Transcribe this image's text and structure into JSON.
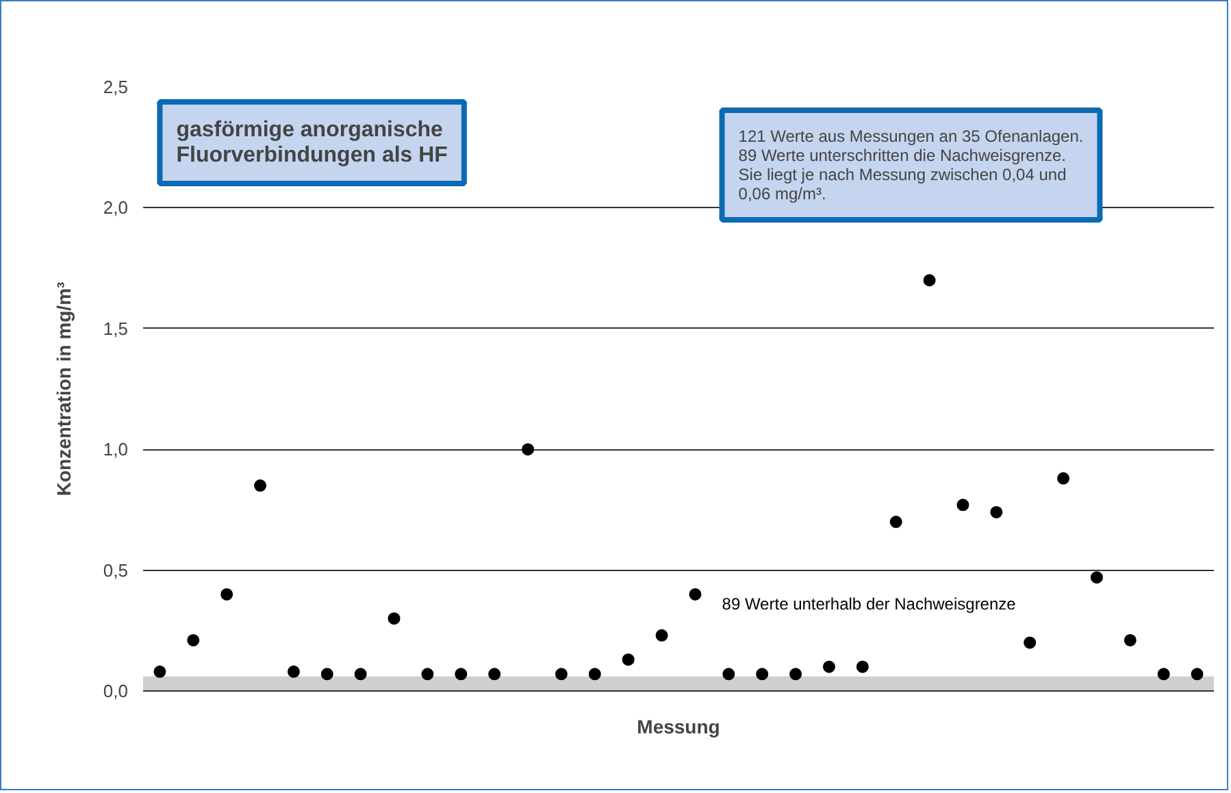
{
  "chart_data": {
    "type": "scatter",
    "title": "gasförmige anorganische\nFluorverbindungen als HF",
    "xlabel": "Messung",
    "ylabel": "Konzentration in mg/m³",
    "categories": [
      null,
      null,
      null,
      null,
      null,
      null,
      null,
      null,
      null,
      null,
      null,
      null,
      null,
      null,
      null,
      null,
      null,
      null,
      null,
      null,
      null,
      null,
      null,
      null,
      null,
      null,
      null,
      null,
      null,
      null,
      null,
      null
    ],
    "series": [
      {
        "color": "#000000",
        "values": [
          0.08,
          0.21,
          0.4,
          0.85,
          0.08,
          0.07,
          0.07,
          0.3,
          0.07,
          0.07,
          0.07,
          1.0,
          0.07,
          0.07,
          0.13,
          0.23,
          0.4,
          0.07,
          0.07,
          0.07,
          0.1,
          0.1,
          0.7,
          1.7,
          0.77,
          0.74,
          0.2,
          0.88,
          0.47,
          0.21,
          0.07,
          0.07
        ]
      }
    ],
    "ylim": [
      0,
      2.5
    ],
    "yticks": [
      {
        "value": 0,
        "label": "0,0"
      },
      {
        "value": 0.5,
        "label": "0,5"
      },
      {
        "value": 1,
        "label": "1,0"
      },
      {
        "value": 1.5,
        "label": "1,5"
      },
      {
        "value": 2,
        "label": "2,0"
      },
      {
        "value": 2.5,
        "label": "2,5"
      }
    ],
    "grid": "y",
    "marker": "circle",
    "bands": [
      {
        "axis": "y",
        "from": 0,
        "to": 0.06,
        "color": "#cfcfcf"
      }
    ],
    "annotations": [
      "121 Werte aus Messungen an 35 Ofenanlagen.\n89 Werte unterschritten die Nachweisgrenze.\nSie liegt je nach Messung zwischen 0,04 und\n0,06 mg/m³.",
      "89 Werte unterhalb der Nachweisgrenze"
    ]
  }
}
